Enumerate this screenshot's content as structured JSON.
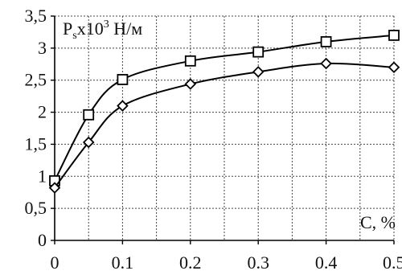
{
  "chart_data": {
    "type": "line",
    "ylabel_parts": {
      "base": "P",
      "sub": "s",
      "mid": "x10",
      "sup": "3",
      "unit": " Н/м"
    },
    "xlabel": "C, %",
    "xlim": [
      0,
      0.5
    ],
    "ylim": [
      0,
      3.5
    ],
    "x_ticks": [
      0,
      0.1,
      0.2,
      0.3,
      0.4,
      0.5
    ],
    "x_tick_labels": [
      "0",
      "0.1",
      "0.2",
      "0.3",
      "0.4",
      "0.5"
    ],
    "x_grid": [
      0,
      0.05,
      0.1,
      0.15,
      0.2,
      0.25,
      0.3,
      0.35,
      0.4,
      0.45,
      0.5
    ],
    "y_ticks": [
      0,
      0.5,
      1,
      1.5,
      2,
      2.5,
      3,
      3.5
    ],
    "y_tick_labels": [
      "0",
      "0,5",
      "1",
      "1,5",
      "2",
      "2,5",
      "3",
      "3,5"
    ],
    "grid": true,
    "series": [
      {
        "marker": "square",
        "x": [
          0,
          0.05,
          0.1,
          0.2,
          0.3,
          0.4,
          0.5
        ],
        "values": [
          0.93,
          1.96,
          2.51,
          2.8,
          2.94,
          3.1,
          3.2
        ]
      },
      {
        "marker": "diamond",
        "x": [
          0,
          0.05,
          0.1,
          0.2,
          0.3,
          0.4,
          0.5
        ],
        "values": [
          0.82,
          1.53,
          2.1,
          2.44,
          2.63,
          2.76,
          2.7
        ]
      }
    ]
  }
}
